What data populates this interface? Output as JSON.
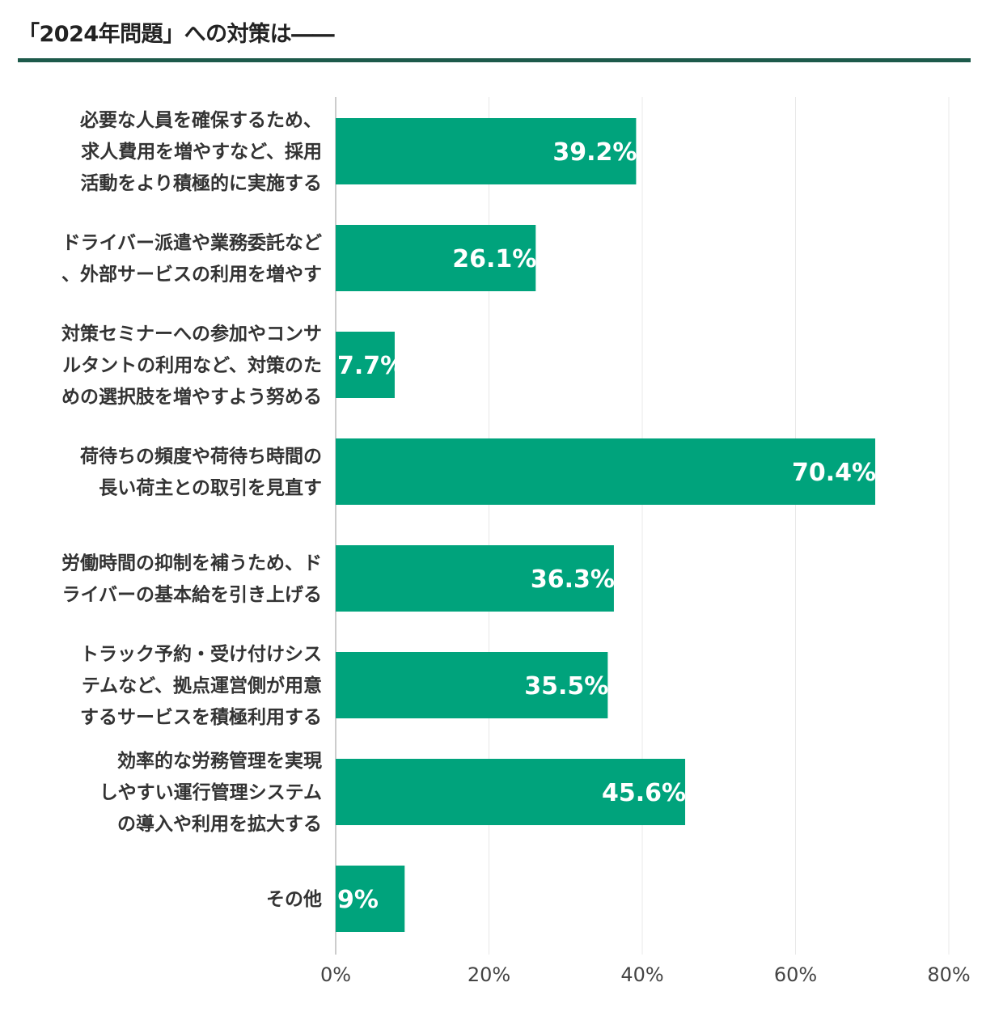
{
  "chart_data": {
    "type": "bar",
    "orientation": "horizontal",
    "title": "「2024年問題」への対策は――",
    "categories": [
      [
        "必要な人員を確保するため、",
        "求人費用を増やすなど、採用",
        "活動をより積極的に実施する"
      ],
      [
        "ドライバー派遣や業務委託など",
        "、外部サービスの利用を増やす"
      ],
      [
        "対策セミナーへの参加やコンサ",
        "ルタントの利用など、対策のた",
        "めの選択肢を増やすよう努める"
      ],
      [
        "荷待ちの頻度や荷待ち時間の",
        "長い荷主との取引を見直す"
      ],
      [
        "労働時間の抑制を補うため、ド",
        "ライバーの基本給を引き上げる"
      ],
      [
        "トラック予約・受け付けシス",
        "テムなど、拠点運営側が用意",
        "するサービスを積極利用する"
      ],
      [
        "効率的な労務管理を実現",
        "しやすい運行管理システム",
        "の導入や利用を拡大する"
      ],
      [
        "その他"
      ]
    ],
    "values": [
      39.2,
      26.1,
      7.7,
      70.4,
      36.3,
      35.5,
      45.6,
      9
    ],
    "value_labels": [
      "39.2%",
      "26.1%",
      "7.7%",
      "70.4%",
      "36.3%",
      "35.5%",
      "45.6%",
      "9%"
    ],
    "xlim": [
      0,
      80
    ],
    "xticks": [
      0,
      20,
      40,
      60,
      80
    ],
    "xtick_labels": [
      "0%",
      "20%",
      "40%",
      "60%",
      "80%"
    ],
    "xlabel": "",
    "ylabel": "",
    "grid": true,
    "legend": "none",
    "colors": {
      "bar": "#00a37c",
      "rule": "#1d5a4b",
      "grid": "#e8e8e8",
      "axis": "#bbbbbb"
    }
  }
}
